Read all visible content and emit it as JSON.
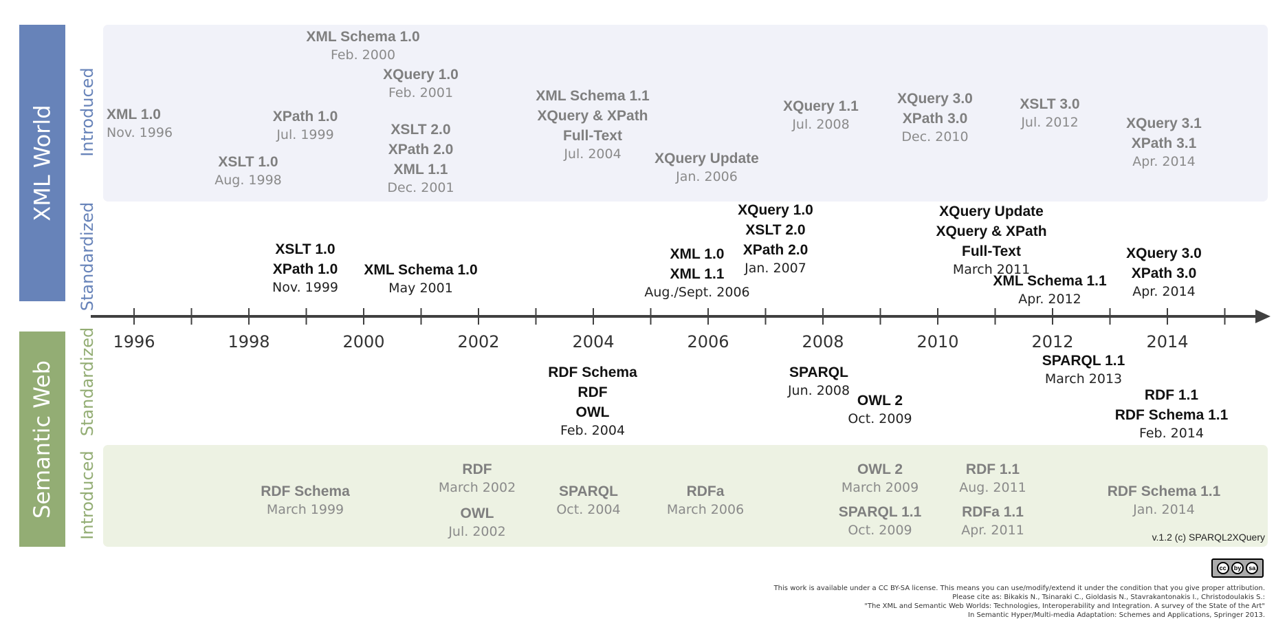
{
  "side_labels": {
    "xml": "XML World",
    "semantic": "Semantic Web"
  },
  "sub_labels": {
    "introduced": "Introduced",
    "standardized": "Standardized"
  },
  "years": [
    "1996",
    "1998",
    "2000",
    "2002",
    "2004",
    "2006",
    "2008",
    "2010",
    "2012",
    "2014"
  ],
  "xml_introduced": [
    {
      "names": [
        "XML 1.0"
      ],
      "date": "Nov. 1996"
    },
    {
      "names": [
        "XSLT 1.0"
      ],
      "date": "Aug. 1998"
    },
    {
      "names": [
        "XPath 1.0"
      ],
      "date": "Jul. 1999"
    },
    {
      "names": [
        "XML Schema 1.0"
      ],
      "date": "Feb. 2000"
    },
    {
      "names": [
        "XQuery 1.0"
      ],
      "date": "Feb. 2001"
    },
    {
      "names": [
        "XSLT 2.0",
        "XPath 2.0",
        "XML 1.1"
      ],
      "date": "Dec. 2001"
    },
    {
      "names": [
        "XML Schema 1.1",
        "XQuery & XPath",
        "Full-Text"
      ],
      "date": "Jul. 2004"
    },
    {
      "names": [
        "XQuery Update"
      ],
      "date": "Jan. 2006"
    },
    {
      "names": [
        "XQuery 1.1"
      ],
      "date": "Jul. 2008"
    },
    {
      "names": [
        "XQuery 3.0",
        "XPath 3.0"
      ],
      "date": "Dec. 2010"
    },
    {
      "names": [
        "XSLT 3.0"
      ],
      "date": "Jul. 2012"
    },
    {
      "names": [
        "XQuery 3.1",
        "XPath 3.1"
      ],
      "date": "Apr. 2014"
    }
  ],
  "xml_standardized": [
    {
      "names": [
        "XSLT 1.0",
        "XPath 1.0"
      ],
      "date": "Nov. 1999"
    },
    {
      "names": [
        "XML Schema 1.0"
      ],
      "date": "May 2001"
    },
    {
      "names": [
        "XML 1.0",
        "XML 1.1"
      ],
      "date": "Aug./Sept. 2006"
    },
    {
      "names": [
        "XQuery 1.0",
        "XSLT 2.0",
        "XPath 2.0"
      ],
      "date": "Jan. 2007"
    },
    {
      "names": [
        "XQuery Update",
        "XQuery & XPath",
        "Full-Text"
      ],
      "date": "March 2011"
    },
    {
      "names": [
        "XML Schema 1.1"
      ],
      "date": "Apr. 2012"
    },
    {
      "names": [
        "XQuery 3.0",
        "XPath 3.0"
      ],
      "date": "Apr. 2014"
    }
  ],
  "sw_standardized": [
    {
      "names": [
        "RDF Schema",
        "RDF",
        "OWL"
      ],
      "date": "Feb. 2004"
    },
    {
      "names": [
        "SPARQL"
      ],
      "date": "Jun. 2008"
    },
    {
      "names": [
        "OWL 2"
      ],
      "date": "Oct. 2009"
    },
    {
      "names": [
        "SPARQL 1.1"
      ],
      "date": "March 2013"
    },
    {
      "names": [
        "RDF 1.1",
        "RDF Schema 1.1"
      ],
      "date": "Feb. 2014"
    }
  ],
  "sw_introduced": [
    {
      "names": [
        "RDF Schema"
      ],
      "date": "March 1999"
    },
    {
      "names": [
        "RDF"
      ],
      "date": "March 2002"
    },
    {
      "names": [
        "OWL"
      ],
      "date": "Jul. 2002"
    },
    {
      "names": [
        "SPARQL"
      ],
      "date": "Oct. 2004"
    },
    {
      "names": [
        "RDFa"
      ],
      "date": "March 2006"
    },
    {
      "names": [
        "OWL 2"
      ],
      "date": "March 2009"
    },
    {
      "names": [
        "SPARQL 1.1"
      ],
      "date": "Oct. 2009"
    },
    {
      "names": [
        "RDF 1.1"
      ],
      "date": "Aug. 2011"
    },
    {
      "names": [
        "RDFa 1.1"
      ],
      "date": "Apr. 2011"
    },
    {
      "names": [
        "RDF Schema 1.1"
      ],
      "date": "Jan. 2014"
    }
  ],
  "version": "v.1.2 (c) SPARQL2XQuery",
  "license_badge": [
    "cc",
    "by",
    "sa"
  ],
  "credits": [
    "This work is available under a CC BY-SA license. This means you can use/modify/extend it under the condition that you give proper attribution.",
    "Please cite as:  Bikakis N., Tsinaraki C., Gioldasis N., Stavrakantonakis I., Christodoulakis S.:",
    "\"The XML and Semantic Web Worlds: Technologies, Interoperability and Integration. A survey of the State of the Art\"",
    "In Semantic Hyper/Multi-media Adaptation: Schemes and Applications, Springer 2013."
  ],
  "colors": {
    "xml_accent": "#6783b9",
    "sw_accent": "#93ad74",
    "xml_band": "#f1f2f9",
    "sw_band": "#edf2e3"
  }
}
